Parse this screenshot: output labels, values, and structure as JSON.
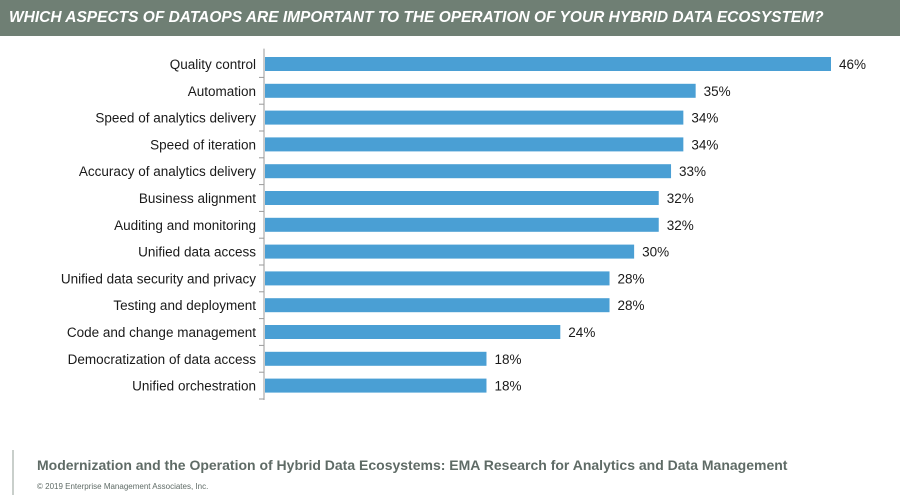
{
  "header": {
    "title": "WHICH ASPECTS OF DATAOPS ARE IMPORTANT TO THE OPERATION OF YOUR HYBRID DATA ECOSYSTEM?"
  },
  "chart_data": {
    "type": "bar",
    "orientation": "horizontal",
    "categories": [
      "Quality control",
      "Automation",
      "Speed of analytics delivery",
      "Speed of iteration",
      "Accuracy of analytics delivery",
      "Business alignment",
      "Auditing and monitoring",
      "Unified data access",
      "Unified data security and privacy",
      "Testing and deployment",
      "Code and change management",
      "Democratization of data access",
      "Unified orchestration"
    ],
    "values": [
      46,
      35,
      34,
      34,
      33,
      32,
      32,
      30,
      28,
      28,
      24,
      18,
      18
    ],
    "value_labels": [
      "46%",
      "35%",
      "34%",
      "34%",
      "33%",
      "32%",
      "32%",
      "30%",
      "28%",
      "28%",
      "24%",
      "18%",
      "18%"
    ],
    "unit": "%",
    "xlim": [
      0,
      46
    ],
    "grid": false,
    "bar_color": "#4a9fd4"
  },
  "footer": {
    "title": "Modernization and the Operation of Hybrid Data Ecosystems: EMA Research for Analytics and Data Management",
    "copyright": "© 2019 Enterprise Management Associates, Inc."
  },
  "colors": {
    "header_band": "#6f7f74",
    "footer_text": "#5f6b66"
  }
}
